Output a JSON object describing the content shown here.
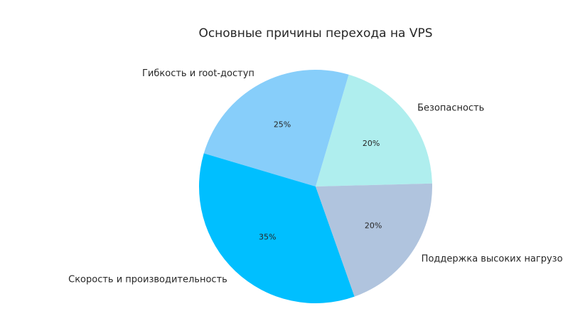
{
  "chart_data": {
    "type": "pie",
    "title": "Основные причины перехода на VPS",
    "slices": [
      {
        "label": "Безопасность",
        "value": 20,
        "pct_label": "20%",
        "color": "#afeeee"
      },
      {
        "label": "Гибкость и root-доступ",
        "value": 25,
        "pct_label": "25%",
        "color": "#87cefa"
      },
      {
        "label": "Скорость и производительность",
        "value": 35,
        "pct_label": "35%",
        "color": "#00bfff"
      },
      {
        "label": "Поддержка высоких нагрузок",
        "value": 20,
        "pct_label": "20%",
        "color": "#b0c4de"
      }
    ]
  }
}
